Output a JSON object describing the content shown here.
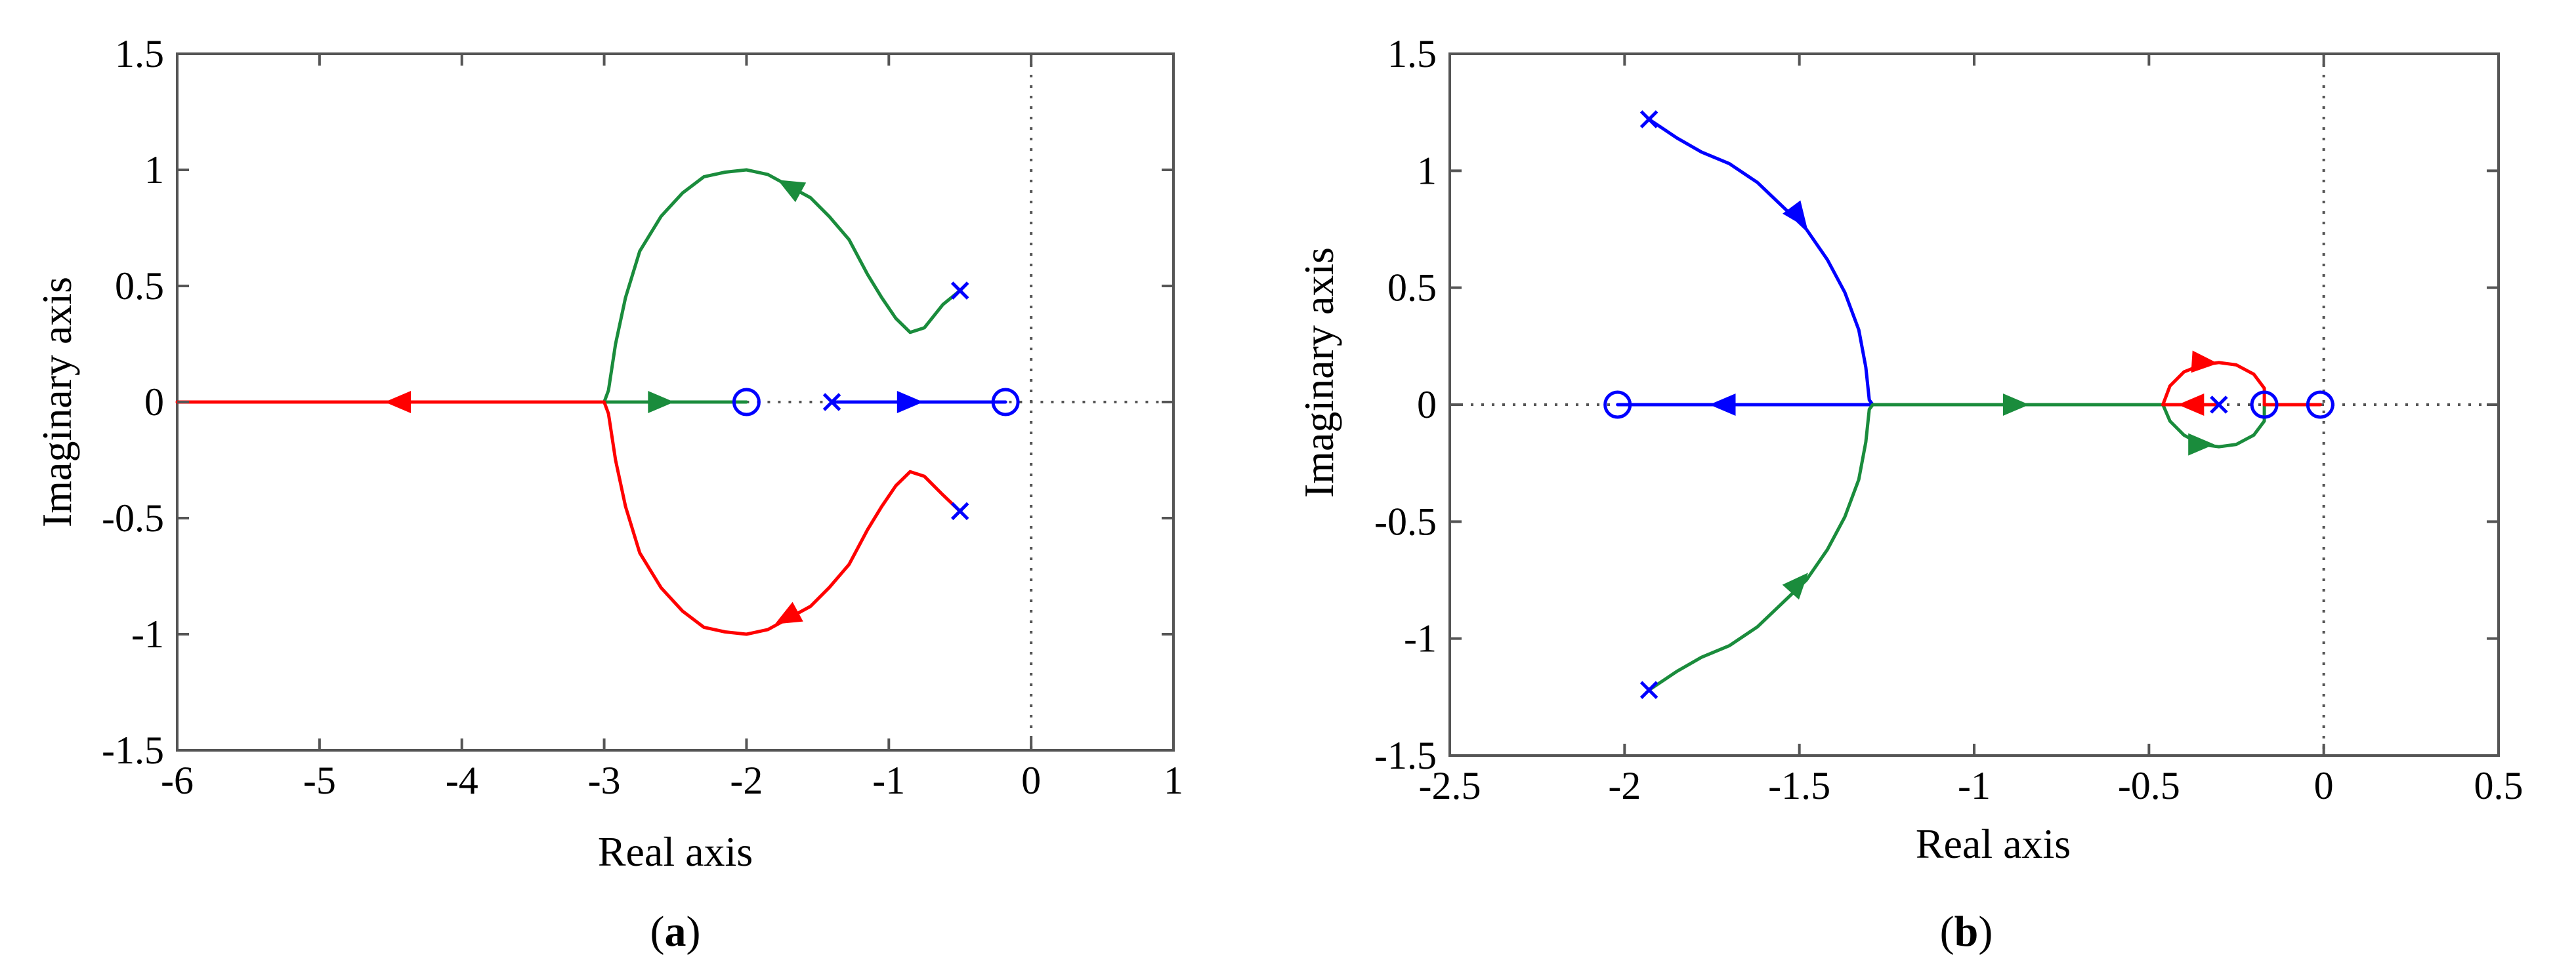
{
  "chart_data": [
    {
      "type": "root-locus",
      "panel_label": "a",
      "xlabel": "Real axis",
      "ylabel": "Imaginary axis",
      "xlim": [
        -6,
        1
      ],
      "ylim": [
        -1.5,
        1.5
      ],
      "xticks": [
        -6,
        -5,
        -4,
        -3,
        -2,
        -1,
        0,
        1
      ],
      "xtick_labels": [
        "-6",
        "-5",
        "-4",
        "-3",
        "-2",
        "-1",
        "0",
        "1"
      ],
      "yticks": [
        -1.5,
        -1,
        -0.5,
        0,
        0.5,
        1,
        1.5
      ],
      "ytick_labels": [
        "-1.5",
        "-1",
        "-0.5",
        "0",
        "0.5",
        "1",
        "1.5"
      ],
      "reference_lines": [
        {
          "orientation": "vertical",
          "x": 0,
          "style": "dotted"
        },
        {
          "orientation": "horizontal",
          "y": 0,
          "style": "dotted",
          "from_x": -2,
          "to_x": 1
        }
      ],
      "poles": [
        [
          -0.5,
          0.48
        ],
        [
          -0.5,
          -0.47
        ],
        [
          -1.4,
          0
        ]
      ],
      "zeros": [
        [
          -2.0,
          0
        ],
        [
          -0.18,
          0
        ]
      ],
      "series": [
        {
          "name": "branch-upper",
          "color": "#1a8c3c",
          "points": [
            [
              -0.5,
              0.48
            ],
            [
              -0.62,
              0.42
            ],
            [
              -0.75,
              0.32
            ],
            [
              -0.85,
              0.3
            ],
            [
              -0.95,
              0.36
            ],
            [
              -1.05,
              0.45
            ],
            [
              -1.15,
              0.55
            ],
            [
              -1.28,
              0.7
            ],
            [
              -1.42,
              0.8
            ],
            [
              -1.55,
              0.88
            ],
            [
              -1.7,
              0.93
            ],
            [
              -1.85,
              0.98
            ],
            [
              -2.0,
              1.0
            ],
            [
              -2.15,
              0.99
            ],
            [
              -2.3,
              0.97
            ],
            [
              -2.45,
              0.9
            ],
            [
              -2.6,
              0.8
            ],
            [
              -2.75,
              0.65
            ],
            [
              -2.85,
              0.45
            ],
            [
              -2.92,
              0.25
            ],
            [
              -2.97,
              0.05
            ],
            [
              -3.0,
              0
            ]
          ],
          "arrows": [
            {
              "x": -1.7,
              "y": 0.93,
              "toward": [
                -1.85,
                0.98
              ]
            }
          ]
        },
        {
          "name": "branch-real-green",
          "color": "#1a8c3c",
          "points": [
            [
              -3.0,
              0
            ],
            [
              -2.0,
              0
            ]
          ],
          "arrows": [
            {
              "x": -2.6,
              "y": 0,
              "toward": [
                -2.5,
                0
              ]
            }
          ]
        },
        {
          "name": "branch-lower",
          "color": "#ff0000",
          "points": [
            [
              -0.5,
              -0.47
            ],
            [
              -0.62,
              -0.4
            ],
            [
              -0.75,
              -0.32
            ],
            [
              -0.85,
              -0.3
            ],
            [
              -0.95,
              -0.36
            ],
            [
              -1.05,
              -0.45
            ],
            [
              -1.15,
              -0.55
            ],
            [
              -1.28,
              -0.7
            ],
            [
              -1.42,
              -0.8
            ],
            [
              -1.55,
              -0.88
            ],
            [
              -1.7,
              -0.93
            ],
            [
              -1.85,
              -0.98
            ],
            [
              -2.0,
              -1.0
            ],
            [
              -2.15,
              -0.99
            ],
            [
              -2.3,
              -0.97
            ],
            [
              -2.45,
              -0.9
            ],
            [
              -2.6,
              -0.8
            ],
            [
              -2.75,
              -0.65
            ],
            [
              -2.85,
              -0.45
            ],
            [
              -2.92,
              -0.25
            ],
            [
              -2.97,
              -0.05
            ],
            [
              -3.0,
              0
            ]
          ],
          "arrows": [
            {
              "x": -1.72,
              "y": -0.93,
              "toward": [
                -1.87,
                -0.98
              ]
            }
          ]
        },
        {
          "name": "branch-real-red",
          "color": "#ff0000",
          "points": [
            [
              -3.0,
              0
            ],
            [
              -6.0,
              0
            ]
          ],
          "arrows": [
            {
              "x": -4.45,
              "y": 0,
              "toward": [
                -4.6,
                0
              ]
            }
          ]
        },
        {
          "name": "branch-real-blue",
          "color": "#0000ff",
          "points": [
            [
              -1.4,
              0
            ],
            [
              -0.18,
              0
            ]
          ],
          "arrows": [
            {
              "x": -0.85,
              "y": 0,
              "toward": [
                -0.7,
                0
              ]
            }
          ]
        }
      ]
    },
    {
      "type": "root-locus",
      "panel_label": "b",
      "xlabel": "Real axis",
      "ylabel": "Imaginary axis",
      "xlim": [
        -2.5,
        0.5
      ],
      "ylim": [
        -1.5,
        1.5
      ],
      "xticks": [
        -2.5,
        -2,
        -1.5,
        -1,
        -0.5,
        0,
        0.5
      ],
      "xtick_labels": [
        "-2.5",
        "-2",
        "-1.5",
        "-1",
        "-0.5",
        "0",
        "0.5"
      ],
      "yticks": [
        -1.5,
        -1,
        -0.5,
        0,
        0.5,
        1,
        1.5
      ],
      "ytick_labels": [
        "-1.5",
        "-1",
        "-0.5",
        "0",
        "0.5",
        "1",
        "1.5"
      ],
      "reference_lines": [
        {
          "orientation": "vertical",
          "x": 0,
          "style": "dotted"
        },
        {
          "orientation": "horizontal",
          "y": 0,
          "style": "dotted",
          "from_x": -2.5,
          "to_x": 0.5
        }
      ],
      "poles": [
        [
          -1.93,
          1.22
        ],
        [
          -1.93,
          -1.22
        ],
        [
          -0.3,
          0
        ]
      ],
      "zeros": [
        [
          -2.02,
          0
        ],
        [
          -0.17,
          0
        ],
        [
          -0.01,
          0
        ]
      ],
      "series": [
        {
          "name": "branch-upper-blue",
          "color": "#0000ff",
          "points": [
            [
              -1.93,
              1.22
            ],
            [
              -1.85,
              1.14
            ],
            [
              -1.78,
              1.08
            ],
            [
              -1.7,
              1.03
            ],
            [
              -1.62,
              0.95
            ],
            [
              -1.55,
              0.85
            ],
            [
              -1.48,
              0.75
            ],
            [
              -1.42,
              0.62
            ],
            [
              -1.37,
              0.48
            ],
            [
              -1.33,
              0.32
            ],
            [
              -1.31,
              0.16
            ],
            [
              -1.3,
              0.02
            ],
            [
              -1.29,
              0
            ]
          ],
          "arrows": [
            {
              "x": -1.5,
              "y": 0.8,
              "toward": [
                -1.45,
                0.7
              ]
            }
          ]
        },
        {
          "name": "branch-real-blue",
          "color": "#0000ff",
          "points": [
            [
              -1.29,
              0
            ],
            [
              -2.02,
              0
            ]
          ],
          "arrows": [
            {
              "x": -1.72,
              "y": 0,
              "toward": [
                -1.8,
                0
              ]
            }
          ]
        },
        {
          "name": "branch-lower-green",
          "color": "#1a8c3c",
          "points": [
            [
              -1.93,
              -1.22
            ],
            [
              -1.85,
              -1.14
            ],
            [
              -1.78,
              -1.08
            ],
            [
              -1.7,
              -1.03
            ],
            [
              -1.62,
              -0.95
            ],
            [
              -1.55,
              -0.85
            ],
            [
              -1.48,
              -0.75
            ],
            [
              -1.42,
              -0.62
            ],
            [
              -1.37,
              -0.48
            ],
            [
              -1.33,
              -0.32
            ],
            [
              -1.31,
              -0.16
            ],
            [
              -1.3,
              -0.02
            ],
            [
              -1.29,
              0
            ]
          ],
          "arrows": [
            {
              "x": -1.5,
              "y": -0.76,
              "toward": [
                -1.44,
                -0.66
              ]
            }
          ]
        },
        {
          "name": "branch-real-green",
          "color": "#1a8c3c",
          "points": [
            [
              -1.29,
              0
            ],
            [
              -0.46,
              0
            ]
          ],
          "arrows": [
            {
              "x": -0.88,
              "y": 0,
              "toward": [
                -0.78,
                0
              ]
            }
          ]
        },
        {
          "name": "loop-green",
          "color": "#1a8c3c",
          "points": [
            [
              -0.46,
              0
            ],
            [
              -0.44,
              -0.07
            ],
            [
              -0.4,
              -0.13
            ],
            [
              -0.35,
              -0.17
            ],
            [
              -0.3,
              -0.18
            ],
            [
              -0.25,
              -0.17
            ],
            [
              -0.2,
              -0.13
            ],
            [
              -0.17,
              -0.07
            ],
            [
              -0.17,
              0
            ]
          ],
          "arrows": [
            {
              "x": -0.35,
              "y": -0.17,
              "toward": [
                -0.25,
                -0.17
              ]
            }
          ]
        },
        {
          "name": "loop-red-upper",
          "color": "#ff0000",
          "points": [
            [
              -0.46,
              0
            ],
            [
              -0.44,
              0.08
            ],
            [
              -0.4,
              0.14
            ],
            [
              -0.35,
              0.17
            ],
            [
              -0.3,
              0.18
            ],
            [
              -0.25,
              0.17
            ],
            [
              -0.2,
              0.13
            ],
            [
              -0.17,
              0.07
            ],
            [
              -0.17,
              0
            ]
          ],
          "arrows": [
            {
              "x": -0.34,
              "y": 0.18,
              "toward": [
                -0.24,
                0.17
              ]
            }
          ]
        },
        {
          "name": "branch-real-red",
          "color": "#ff0000",
          "points": [
            [
              -0.3,
              0
            ],
            [
              -0.46,
              0
            ]
          ],
          "arrows": [
            {
              "x": -0.38,
              "y": 0,
              "toward": [
                -0.46,
                0
              ]
            }
          ]
        },
        {
          "name": "branch-short-red",
          "color": "#ff0000",
          "points": [
            [
              -0.01,
              0
            ],
            [
              -0.17,
              0
            ]
          ],
          "arrows": []
        }
      ]
    }
  ]
}
